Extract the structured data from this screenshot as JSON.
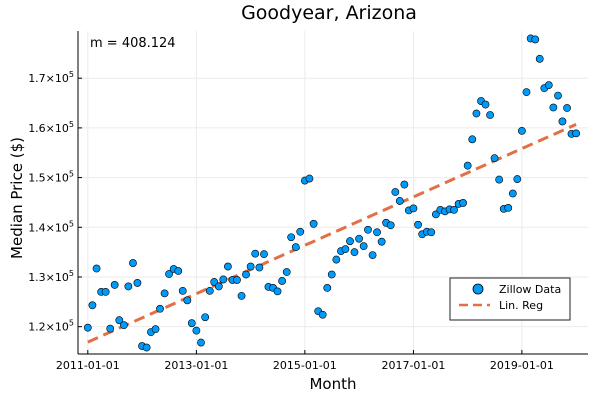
{
  "chart_data": {
    "type": "scatter",
    "title": "Goodyear, Arizona",
    "xlabel": "Month",
    "ylabel": "Median Price ($)",
    "annotation": "m = 408.124",
    "x_ticks": [
      "2011-01-01",
      "2013-01-01",
      "2015-01-01",
      "2017-01-01",
      "2019-01-01"
    ],
    "y_ticks": [
      {
        "value": 120000,
        "mantissa": "1.2",
        "exp": "5"
      },
      {
        "value": 130000,
        "mantissa": "1.3",
        "exp": "5"
      },
      {
        "value": 140000,
        "mantissa": "1.4",
        "exp": "5"
      },
      {
        "value": 150000,
        "mantissa": "1.5",
        "exp": "5"
      },
      {
        "value": 160000,
        "mantissa": "1.6",
        "exp": "5"
      },
      {
        "value": 170000,
        "mantissa": "1.7",
        "exp": "5"
      }
    ],
    "ylim": [
      114500,
      179500
    ],
    "xlim": [
      "2010-10-27",
      "2020-03-21"
    ],
    "grid": true,
    "legend_position": "bottom-right",
    "series": [
      {
        "name": "Zillow Data",
        "kind": "scatter",
        "color": "#009AFA",
        "points": [
          [
            "2011-01-01",
            119800
          ],
          [
            "2011-02-01",
            124300
          ],
          [
            "2011-03-01",
            131700
          ],
          [
            "2011-04-01",
            127000
          ],
          [
            "2011-05-01",
            127000
          ],
          [
            "2011-06-01",
            119600
          ],
          [
            "2011-07-01",
            128400
          ],
          [
            "2011-08-01",
            121300
          ],
          [
            "2011-09-01",
            120300
          ],
          [
            "2011-10-01",
            128100
          ],
          [
            "2011-11-01",
            132800
          ],
          [
            "2011-12-01",
            128800
          ],
          [
            "2012-01-01",
            116100
          ],
          [
            "2012-02-01",
            115800
          ],
          [
            "2012-03-01",
            118900
          ],
          [
            "2012-04-01",
            119500
          ],
          [
            "2012-05-01",
            123600
          ],
          [
            "2012-06-01",
            126700
          ],
          [
            "2012-07-01",
            130600
          ],
          [
            "2012-08-01",
            131600
          ],
          [
            "2012-09-01",
            131200
          ],
          [
            "2012-10-01",
            127200
          ],
          [
            "2012-11-01",
            125300
          ],
          [
            "2012-12-01",
            120700
          ],
          [
            "2013-01-01",
            119200
          ],
          [
            "2013-02-01",
            116800
          ],
          [
            "2013-03-01",
            121900
          ],
          [
            "2013-04-01",
            127200
          ],
          [
            "2013-05-01",
            129000
          ],
          [
            "2013-06-01",
            128100
          ],
          [
            "2013-07-01",
            129500
          ],
          [
            "2013-08-01",
            132100
          ],
          [
            "2013-09-01",
            129400
          ],
          [
            "2013-10-01",
            129400
          ],
          [
            "2013-11-01",
            126200
          ],
          [
            "2013-12-01",
            130500
          ],
          [
            "2014-01-01",
            132100
          ],
          [
            "2014-02-01",
            134700
          ],
          [
            "2014-03-01",
            131900
          ],
          [
            "2014-04-01",
            134600
          ],
          [
            "2014-05-01",
            128000
          ],
          [
            "2014-06-01",
            127800
          ],
          [
            "2014-07-01",
            127100
          ],
          [
            "2014-08-01",
            129200
          ],
          [
            "2014-09-01",
            131000
          ],
          [
            "2014-10-01",
            138000
          ],
          [
            "2014-11-01",
            136000
          ],
          [
            "2014-12-01",
            139100
          ],
          [
            "2015-01-01",
            149400
          ],
          [
            "2015-02-01",
            149800
          ],
          [
            "2015-03-01",
            140700
          ],
          [
            "2015-04-01",
            123100
          ],
          [
            "2015-05-01",
            122400
          ],
          [
            "2015-06-01",
            127800
          ],
          [
            "2015-07-01",
            130500
          ],
          [
            "2015-08-01",
            133500
          ],
          [
            "2015-09-01",
            135200
          ],
          [
            "2015-10-01",
            135600
          ],
          [
            "2015-11-01",
            137200
          ],
          [
            "2015-12-01",
            135000
          ],
          [
            "2016-01-01",
            137700
          ],
          [
            "2016-02-01",
            136200
          ],
          [
            "2016-03-01",
            139500
          ],
          [
            "2016-04-01",
            134400
          ],
          [
            "2016-05-01",
            139000
          ],
          [
            "2016-06-01",
            137100
          ],
          [
            "2016-07-01",
            140900
          ],
          [
            "2016-08-01",
            140400
          ],
          [
            "2016-09-01",
            147100
          ],
          [
            "2016-10-01",
            145300
          ],
          [
            "2016-11-01",
            148600
          ],
          [
            "2016-12-01",
            143400
          ],
          [
            "2017-01-01",
            143800
          ],
          [
            "2017-02-01",
            140500
          ],
          [
            "2017-03-01",
            138600
          ],
          [
            "2017-04-01",
            139100
          ],
          [
            "2017-05-01",
            139000
          ],
          [
            "2017-06-01",
            142600
          ],
          [
            "2017-07-01",
            143500
          ],
          [
            "2017-08-01",
            143200
          ],
          [
            "2017-09-01",
            143600
          ],
          [
            "2017-10-01",
            143500
          ],
          [
            "2017-11-01",
            144700
          ],
          [
            "2017-12-01",
            144900
          ],
          [
            "2018-01-01",
            152400
          ],
          [
            "2018-02-01",
            157700
          ],
          [
            "2018-03-01",
            162900
          ],
          [
            "2018-04-01",
            165400
          ],
          [
            "2018-05-01",
            164700
          ],
          [
            "2018-06-01",
            162600
          ],
          [
            "2018-07-01",
            153900
          ],
          [
            "2018-08-01",
            149600
          ],
          [
            "2018-09-01",
            143700
          ],
          [
            "2018-10-01",
            143900
          ],
          [
            "2018-11-01",
            146800
          ],
          [
            "2018-12-01",
            149700
          ],
          [
            "2019-01-01",
            159400
          ],
          [
            "2019-02-01",
            167200
          ],
          [
            "2019-03-01",
            178000
          ],
          [
            "2019-04-01",
            177800
          ],
          [
            "2019-05-01",
            173900
          ],
          [
            "2019-06-01",
            168000
          ],
          [
            "2019-07-01",
            168600
          ],
          [
            "2019-08-01",
            164100
          ],
          [
            "2019-09-01",
            166500
          ],
          [
            "2019-10-01",
            161300
          ],
          [
            "2019-11-01",
            164000
          ],
          [
            "2019-12-01",
            158800
          ],
          [
            "2020-01-01",
            158900
          ]
        ]
      },
      {
        "name": "Lin. Reg",
        "kind": "line",
        "style": "dashed",
        "color": "#E26F46",
        "points": [
          [
            "2011-01-01",
            116900
          ],
          [
            "2020-01-01",
            160700
          ]
        ]
      }
    ]
  }
}
